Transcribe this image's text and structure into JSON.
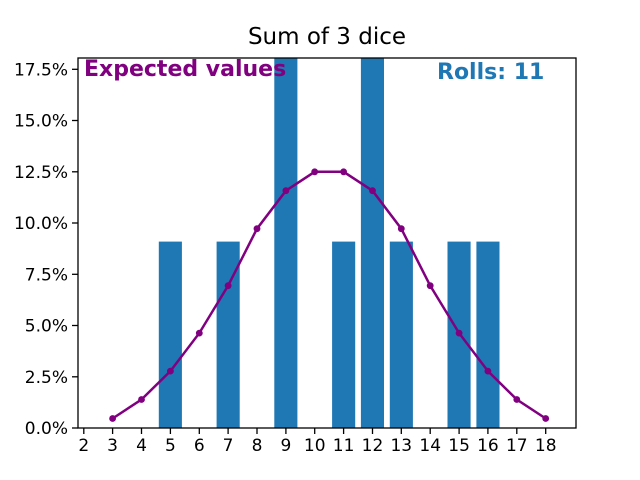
{
  "title": "Sum of 3 dice",
  "annotations": {
    "expected_label": "Expected values",
    "rolls_label": "Rolls: 11"
  },
  "colors": {
    "bars": "#1f77b4",
    "line": "#800080",
    "marker": "#800080",
    "expected_text": "#800080",
    "rolls_text": "#1f77b4",
    "axes": "#000000",
    "tick_text": "#000000",
    "background": "#ffffff"
  },
  "chart_data": {
    "type": "bar",
    "title": "Sum of 3 dice",
    "xlabel": "",
    "ylabel": "",
    "grid": false,
    "legend_position": "none",
    "xlim": [
      1.8,
      19.05
    ],
    "ylim": [
      0,
      18.05
    ],
    "x_ticks": [
      2,
      3,
      4,
      5,
      6,
      7,
      8,
      9,
      10,
      11,
      12,
      13,
      14,
      15,
      16,
      17,
      18
    ],
    "y_tick_values": [
      0,
      2.5,
      5,
      7.5,
      10,
      12.5,
      15,
      17.5
    ],
    "y_tick_labels": [
      "0.0%",
      "2.5%",
      "5.0%",
      "7.5%",
      "10.0%",
      "12.5%",
      "15.0%",
      "17.5%"
    ],
    "bars": {
      "name": "Rolls histogram (percent of rolls)",
      "x": [
        5,
        7,
        9,
        11,
        12,
        13,
        15,
        16
      ],
      "values_pct": [
        9.091,
        9.091,
        18.182,
        9.091,
        18.182,
        9.091,
        9.091,
        9.091
      ],
      "bar_width_units": 0.8,
      "clipped_at_ylim": [
        9,
        12
      ]
    },
    "line": {
      "name": "Expected values",
      "marker": "circle",
      "x": [
        3,
        4,
        5,
        6,
        7,
        8,
        9,
        10,
        11,
        12,
        13,
        14,
        15,
        16,
        17,
        18
      ],
      "values_pct": [
        0.463,
        1.389,
        2.778,
        4.63,
        6.944,
        9.722,
        11.574,
        12.5,
        12.5,
        11.574,
        9.722,
        6.944,
        4.63,
        2.778,
        1.389,
        0.463
      ]
    }
  }
}
